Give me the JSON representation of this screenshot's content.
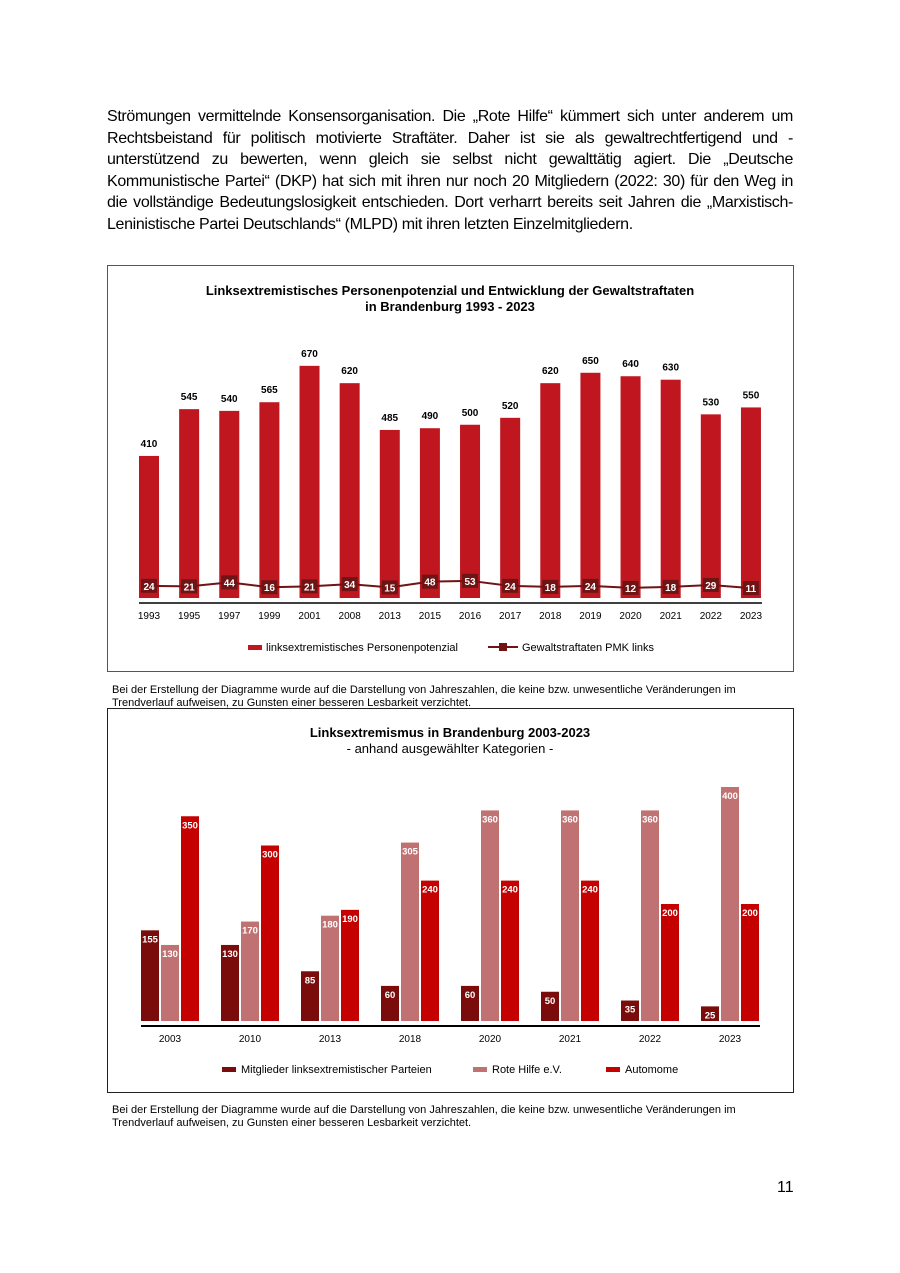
{
  "paragraph": "Strömungen vermittelnde Konsensorganisation. Die „Rote Hilfe“ kümmert sich unter anderem um Rechtsbeistand für politisch motivierte Straftäter. Daher ist sie als gewaltrechtfertigend und -unterstützend zu bewerten, wenn gleich sie selbst nicht gewalttätig agiert. Die „Deutsche Kommunistische Partei“ (DKP) hat sich mit ihren nur noch 20 Mitgliedern (2022: 30) für den Weg in die vollständige Bedeutungslosigkeit entschieden. Dort verharrt bereits seit Jahren die „Marxistisch-Leninistische Partei Deutschlands“ (MLPD) mit ihren letzten Einzelmitgliedern.",
  "chart_data": [
    {
      "type": "bar",
      "title": [
        "Linksextremistisches Personenpotenzial und Entwicklung der Gewaltstraftaten",
        "in Brandenburg 1993 - 2023"
      ],
      "categories": [
        "1993",
        "1995",
        "1997",
        "1999",
        "2001",
        "2008",
        "2013",
        "2015",
        "2016",
        "2017",
        "2018",
        "2019",
        "2020",
        "2021",
        "2022",
        "2023"
      ],
      "series": [
        {
          "name": "linksextremistisches Personenpotenzial",
          "type": "bar",
          "color": "#c0161f",
          "values": [
            410,
            545,
            540,
            565,
            670,
            620,
            485,
            490,
            500,
            520,
            620,
            650,
            640,
            630,
            530,
            550
          ]
        },
        {
          "name": "Gewaltstraftaten PMK links",
          "type": "line",
          "color": "#6e1414",
          "values": [
            24,
            21,
            44,
            16,
            21,
            34,
            15,
            48,
            53,
            24,
            18,
            24,
            12,
            18,
            29,
            11
          ]
        }
      ],
      "note": "Bei der Erstellung der Diagramme wurde auf die Darstellung von Jahreszahlen, die keine bzw. unwesentliche Veränderungen im Trendverlauf aufweisen, zu Gunsten einer besseren Lesbarkeit verzichtet."
    },
    {
      "type": "grouped_bar",
      "title": [
        "Linksextremismus in Brandenburg 2003-2023"
      ],
      "subtitle": "- anhand ausgewählter Kategorien -",
      "categories": [
        "2003",
        "2010",
        "2013",
        "2018",
        "2020",
        "2021",
        "2022",
        "2023"
      ],
      "series": [
        {
          "name": "Mitglieder linksextremistischer Parteien",
          "color": "#7a0c0c",
          "values": [
            155,
            130,
            85,
            60,
            60,
            50,
            35,
            25
          ]
        },
        {
          "name": "Rote Hilfe e.V.",
          "color": "#c07272",
          "values": [
            130,
            170,
            180,
            305,
            360,
            360,
            360,
            400
          ]
        },
        {
          "name": "Automome",
          "color": "#c40000",
          "values": [
            350,
            300,
            190,
            240,
            240,
            240,
            200,
            200
          ]
        }
      ],
      "note": "Bei der Erstellung der Diagramme wurde auf die Darstellung von Jahreszahlen, die keine bzw. unwesentliche Veränderungen im Trendverlauf aufweisen, zu Gunsten einer besseren Lesbarkeit verzichtet."
    }
  ],
  "page_number": "11"
}
